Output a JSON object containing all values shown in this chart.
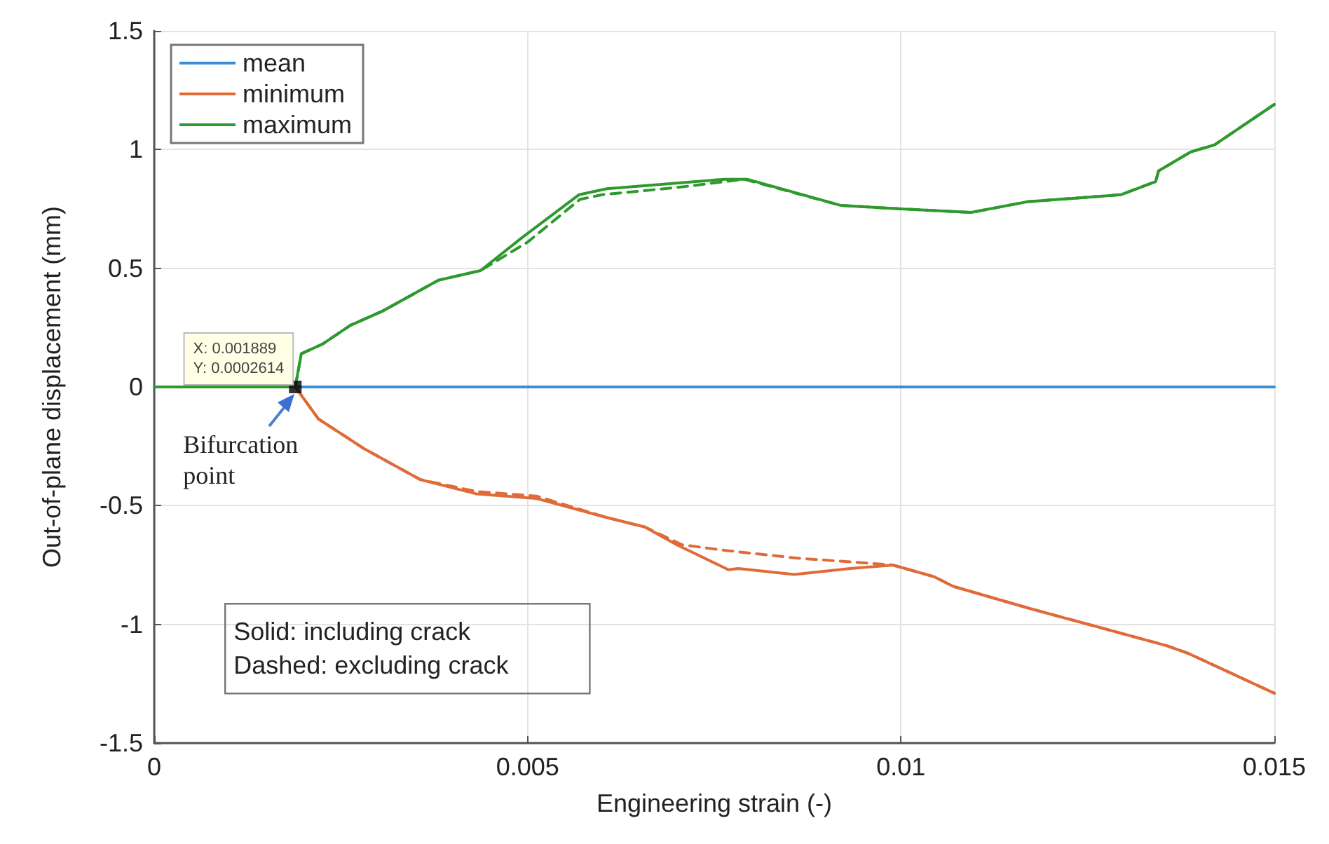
{
  "chart_data": {
    "type": "line",
    "xlabel": "Engineering strain (-)",
    "ylabel": "Out-of-plane displacement (mm)",
    "xlim": [
      0,
      0.015
    ],
    "xticks": [
      0,
      0.005,
      0.01,
      0.015
    ],
    "ylim": [
      -1.5,
      1.5
    ],
    "yticks": [
      -1.5,
      -1,
      -0.5,
      0,
      0.5,
      1,
      1.5
    ],
    "grid": true,
    "legend": "top left",
    "marker": "none",
    "annotations": [
      {
        "text": "X: 0.001889\nY: 0.0002614",
        "x": 0.001889,
        "y": 0.0002614
      },
      {
        "text": "Bifurcation\npoint",
        "x": 0.001889,
        "y": 0.0002614
      },
      "Solid: including crack\nDashed: excluding crack"
    ],
    "series": [
      {
        "name": "mean",
        "color": "#3a8fd4",
        "line_style": "solid",
        "x": [
          0,
          0.015
        ],
        "values": [
          0,
          0
        ]
      },
      {
        "name": "minimum",
        "color": "#e06a38",
        "line_style": "solid",
        "x": [
          0.001889,
          0.0022,
          0.00281,
          0.00356,
          0.00431,
          0.00512,
          0.00606,
          0.00657,
          0.007,
          0.00769,
          0.00782,
          0.00857,
          0.00932,
          0.00989,
          0.01045,
          0.0107,
          0.01169,
          0.01356,
          0.01383,
          0.015
        ],
        "values": [
          0,
          -0.135,
          -0.26,
          -0.39,
          -0.45,
          -0.47,
          -0.55,
          -0.59,
          -0.665,
          -0.77,
          -0.765,
          -0.79,
          -0.765,
          -0.75,
          -0.8,
          -0.84,
          -0.93,
          -1.09,
          -1.12,
          -1.29
        ]
      },
      {
        "name": "maximum",
        "color": "#2e9a2e",
        "line_style": "solid",
        "x": [
          0,
          0.001889,
          0.00197,
          0.00225,
          0.00263,
          0.00306,
          0.00381,
          0.00437,
          0.00493,
          0.00569,
          0.00606,
          0.00764,
          0.00794,
          0.00919,
          0.01,
          0.01094,
          0.01169,
          0.01295,
          0.01341,
          0.01345,
          0.01388,
          0.0142,
          0.015
        ],
        "values": [
          0,
          0,
          0.14,
          0.18,
          0.26,
          0.32,
          0.45,
          0.49,
          0.63,
          0.81,
          0.835,
          0.875,
          0.875,
          0.765,
          0.75,
          0.735,
          0.78,
          0.81,
          0.865,
          0.91,
          0.99,
          1.02,
          1.19
        ]
      },
      {
        "color": "#e06a38",
        "line_style": "dashed",
        "x": [
          0.001889,
          0.0022,
          0.00281,
          0.00356,
          0.00431,
          0.00512,
          0.00606,
          0.00657,
          0.00707,
          0.00769,
          0.00857,
          0.00989,
          0.01045,
          0.0107,
          0.01169,
          0.01356,
          0.01383,
          0.015
        ],
        "values": [
          0,
          -0.135,
          -0.26,
          -0.39,
          -0.44,
          -0.46,
          -0.55,
          -0.59,
          -0.665,
          -0.69,
          -0.72,
          -0.75,
          -0.8,
          -0.84,
          -0.93,
          -1.09,
          -1.12,
          -1.29
        ]
      },
      {
        "color": "#2e9a2e",
        "line_style": "dashed",
        "x": [
          0.001889,
          0.00197,
          0.00225,
          0.00263,
          0.00306,
          0.00381,
          0.00437,
          0.005,
          0.0057,
          0.006,
          0.007,
          0.0079,
          0.00919,
          0.01,
          0.01094,
          0.01169,
          0.01295,
          0.01341,
          0.01345,
          0.01388,
          0.0142,
          0.015
        ],
        "values": [
          0,
          0.14,
          0.18,
          0.26,
          0.32,
          0.45,
          0.49,
          0.61,
          0.79,
          0.81,
          0.84,
          0.875,
          0.765,
          0.75,
          0.735,
          0.78,
          0.81,
          0.865,
          0.91,
          0.99,
          1.02,
          1.19
        ]
      },
      {
        "type": "scatter",
        "color": "#000000",
        "marker": "square",
        "x": [
          0.001889
        ],
        "values": [
          0
        ]
      }
    ]
  }
}
